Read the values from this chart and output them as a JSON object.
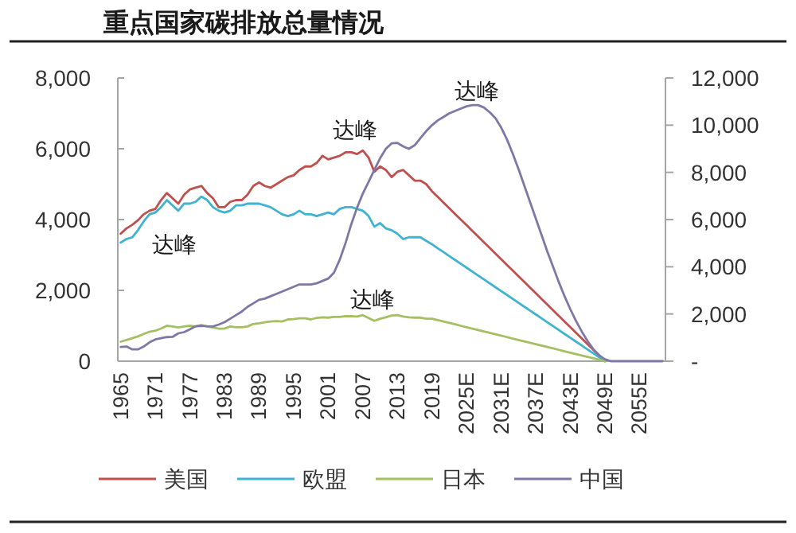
{
  "chart_data": {
    "type": "line",
    "title": "重点国家碳排放总量情况",
    "categories": [
      "1965",
      null,
      null,
      null,
      null,
      null,
      "1971",
      null,
      null,
      null,
      null,
      null,
      "1977",
      null,
      null,
      null,
      null,
      null,
      "1983",
      null,
      null,
      null,
      null,
      null,
      "1989",
      null,
      null,
      null,
      null,
      null,
      "1995",
      null,
      null,
      null,
      null,
      null,
      "2001",
      null,
      null,
      null,
      null,
      null,
      "2007",
      null,
      null,
      null,
      null,
      null,
      "2013",
      null,
      null,
      null,
      null,
      null,
      "2019",
      null,
      null,
      null,
      null,
      null,
      "2025E",
      null,
      null,
      null,
      null,
      null,
      "2031E",
      null,
      null,
      null,
      null,
      null,
      "2037E",
      null,
      null,
      null,
      null,
      null,
      "2043E",
      null,
      null,
      null,
      null,
      null,
      "2049E",
      null,
      null,
      null,
      null,
      null,
      "2055E",
      null,
      null,
      null,
      null
    ],
    "series": [
      {
        "name": "美国",
        "color": "#c0504d",
        "values": [
          3600,
          3750,
          3850,
          3980,
          4150,
          4250,
          4300,
          4550,
          4750,
          4600,
          4450,
          4700,
          4850,
          4900,
          4950,
          4750,
          4600,
          4350,
          4350,
          4500,
          4550,
          4550,
          4700,
          4950,
          5050,
          4950,
          4900,
          5000,
          5100,
          5200,
          5250,
          5400,
          5500,
          5500,
          5600,
          5800,
          5700,
          5750,
          5800,
          5900,
          5900,
          5850,
          5950,
          5750,
          5350,
          5500,
          5400,
          5200,
          5350,
          5400,
          5250,
          5100,
          5100,
          5000,
          4800,
          4640,
          4480,
          4320,
          4160,
          4000,
          3840,
          3680,
          3520,
          3360,
          3200,
          3040,
          2880,
          2720,
          2560,
          2400,
          2240,
          2080,
          1920,
          1760,
          1600,
          1440,
          1280,
          1120,
          960,
          800,
          640,
          480,
          320,
          160,
          0,
          null,
          null,
          null,
          null,
          null,
          null,
          null,
          null,
          null,
          null
        ]
      },
      {
        "name": "欧盟",
        "color": "#40b2d2",
        "values": [
          3350,
          3450,
          3500,
          3700,
          3950,
          4150,
          4200,
          4350,
          4550,
          4400,
          4250,
          4450,
          4450,
          4500,
          4650,
          4550,
          4350,
          4250,
          4200,
          4250,
          4400,
          4400,
          4450,
          4450,
          4450,
          4400,
          4350,
          4250,
          4150,
          4100,
          4150,
          4250,
          4150,
          4150,
          4100,
          4150,
          4200,
          4150,
          4300,
          4350,
          4350,
          4300,
          4250,
          4100,
          3800,
          3900,
          3750,
          3700,
          3600,
          3450,
          3500,
          3500,
          3500,
          3400,
          3300,
          3190,
          3080,
          2970,
          2860,
          2750,
          2640,
          2530,
          2420,
          2310,
          2200,
          2090,
          1980,
          1870,
          1760,
          1650,
          1540,
          1430,
          1320,
          1210,
          1100,
          990,
          880,
          770,
          660,
          550,
          440,
          330,
          220,
          110,
          0,
          null,
          null,
          null,
          null,
          null,
          null,
          null,
          null,
          null,
          null
        ]
      },
      {
        "name": "日本",
        "color": "#a4c063",
        "values": [
          550,
          600,
          650,
          700,
          770,
          830,
          860,
          920,
          1000,
          980,
          950,
          980,
          1000,
          980,
          1020,
          980,
          950,
          920,
          920,
          980,
          960,
          960,
          980,
          1050,
          1070,
          1100,
          1120,
          1130,
          1120,
          1180,
          1190,
          1210,
          1210,
          1180,
          1220,
          1240,
          1230,
          1250,
          1250,
          1270,
          1270,
          1260,
          1300,
          1220,
          1140,
          1200,
          1240,
          1290,
          1300,
          1260,
          1240,
          1230,
          1230,
          1200,
          1200,
          1160,
          1120,
          1080,
          1040,
          1000,
          960,
          920,
          880,
          840,
          800,
          760,
          720,
          680,
          640,
          600,
          560,
          520,
          480,
          440,
          400,
          360,
          320,
          280,
          240,
          200,
          160,
          120,
          80,
          40,
          0,
          null,
          null,
          null,
          null,
          null,
          null,
          null,
          null,
          null,
          null
        ]
      },
      {
        "name": "中国",
        "color": "#7e78a6",
        "axis": "y2",
        "values": [
          600,
          620,
          500,
          500,
          620,
          800,
          920,
          970,
          1020,
          1030,
          1180,
          1230,
          1350,
          1480,
          1500,
          1480,
          1470,
          1550,
          1650,
          1800,
          1950,
          2100,
          2300,
          2450,
          2600,
          2650,
          2750,
          2850,
          2950,
          3050,
          3150,
          3250,
          3250,
          3250,
          3300,
          3400,
          3500,
          3750,
          4300,
          5000,
          5800,
          6500,
          7100,
          7600,
          8100,
          8600,
          9000,
          9230,
          9250,
          9100,
          9000,
          9150,
          9450,
          9750,
          10000,
          10200,
          10350,
          10500,
          10600,
          10700,
          10800,
          10850,
          10850,
          10750,
          10550,
          10300,
          9900,
          9400,
          8800,
          8150,
          7450,
          6750,
          6050,
          5350,
          4650,
          4000,
          3350,
          2750,
          2200,
          1700,
          1250,
          850,
          500,
          250,
          80,
          0,
          0,
          0,
          0,
          0,
          0,
          0,
          0,
          0,
          0
        ]
      }
    ],
    "ylim": [
      0,
      8000
    ],
    "yticks": [
      0,
      {
        "value": 2000,
        "label": "2,000"
      },
      {
        "value": 4000,
        "label": "4,000"
      },
      {
        "value": 6000,
        "label": "6,000"
      },
      {
        "value": 8000,
        "label": "8,000"
      }
    ],
    "y2lim": [
      0,
      12000
    ],
    "y2ticks": [
      {
        "value": 0,
        "label": "-"
      },
      {
        "value": 2000,
        "label": "2,000"
      },
      {
        "value": 4000,
        "label": "4,000"
      },
      {
        "value": 6000,
        "label": "6,000"
      },
      {
        "value": 8000,
        "label": "8,000"
      },
      {
        "value": 10000,
        "label": "10,000"
      },
      {
        "value": 12000,
        "label": "12,000"
      }
    ],
    "legend": "bottom",
    "annotations": [
      "达峰",
      "达峰",
      "达峰",
      "达峰"
    ]
  }
}
